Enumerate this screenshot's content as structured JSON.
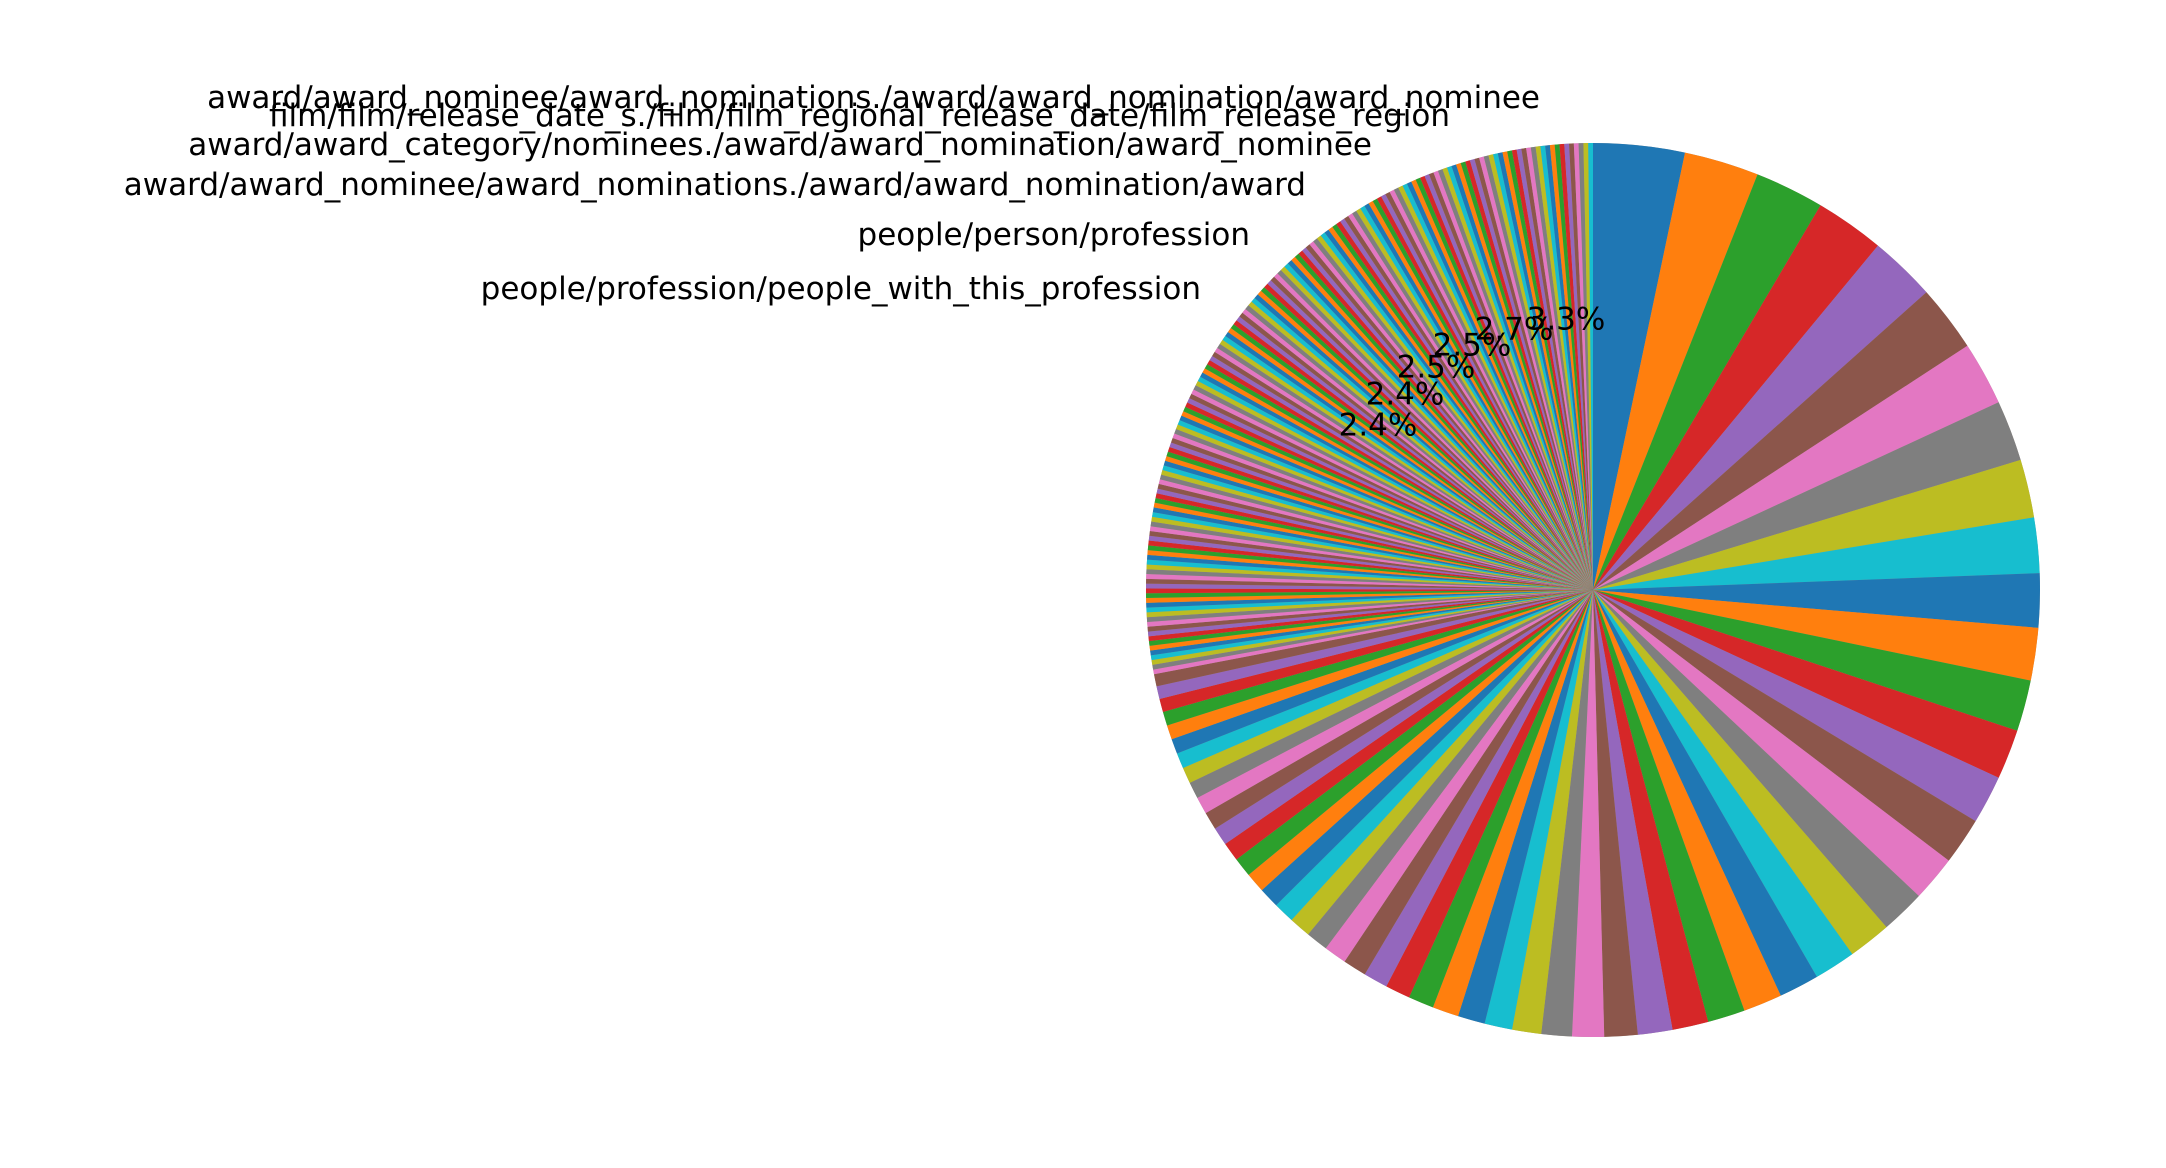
{
  "chart_data": {
    "type": "pie",
    "start_angle_deg": 90,
    "direction": "clockwise",
    "slices_shown": 220,
    "palette": [
      "#1f77b4",
      "#ff7f0e",
      "#2ca02c",
      "#d62728",
      "#9467bd",
      "#8c564b",
      "#e377c2",
      "#7f7f7f",
      "#bcbd22",
      "#17becf"
    ],
    "tail_color": "#a89c90",
    "labeled_slices": [
      {
        "label": "award/award_nominee/award_nominations./award/award_nomination/award_nominee",
        "value": 3.3,
        "pct_label": "3.3%"
      },
      {
        "label": "film/film/release_date_s./film/film_regional_release_date/film_release_region",
        "value": 2.7,
        "pct_label": "2.7%"
      },
      {
        "label": "award/award_category/nominees./award/award_nomination/award_nominee",
        "value": 2.5,
        "pct_label": "2.5%"
      },
      {
        "label": "award/award_nominee/award_nominations./award/award_nomination/award",
        "value": 2.5,
        "pct_label": "2.5%"
      },
      {
        "label": "people/person/profession",
        "value": 2.4,
        "pct_label": "2.4%"
      },
      {
        "label": "people/profession/people_with_this_profession",
        "value": 2.4,
        "pct_label": "2.4%"
      }
    ],
    "unlabeled_slices_estimate": [
      2.3,
      2.2,
      2.1,
      2.0,
      1.95,
      1.9,
      1.85,
      1.8,
      1.75,
      1.7,
      1.65,
      1.6,
      1.55,
      1.5,
      1.45,
      1.4,
      1.35,
      1.3,
      1.25,
      1.2,
      1.15,
      1.1,
      1.05,
      1.0,
      0.98,
      0.95,
      0.92,
      0.9,
      0.88,
      0.85,
      0.82,
      0.8,
      0.78,
      0.76,
      0.74,
      0.72,
      0.7,
      0.68,
      0.66,
      0.64,
      0.62,
      0.6,
      0.58,
      0.56,
      0.54,
      0.52,
      0.5,
      0.48,
      0.46,
      0.44
    ]
  }
}
